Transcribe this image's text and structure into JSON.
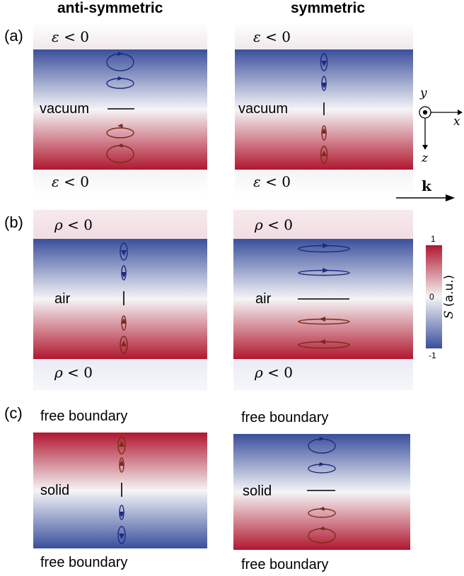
{
  "titles": {
    "left": "anti-symmetric",
    "right": "symmetric"
  },
  "panels": {
    "a": {
      "tag": "(a)",
      "top": "< 0",
      "bottom": "< 0",
      "sym": "ε",
      "middle_left": "vacuum",
      "middle_right": "vacuum"
    },
    "b": {
      "tag": "(b)",
      "top": "< 0",
      "bottom": "< 0",
      "sym": "ρ",
      "middle_left": "air",
      "middle_right": "air"
    },
    "c": {
      "tag": "(c)",
      "top": "free boundary",
      "bottom": "free boundary",
      "middle_left": "solid",
      "middle_right": "solid"
    }
  },
  "axes": {
    "x": "x",
    "y": "y",
    "z": "z",
    "k": "k"
  },
  "colorbar": {
    "max": "1",
    "mid": "0",
    "min": "-1",
    "title": "S (a.u.)",
    "title_symbol": "S",
    "title_unit": "(a.u.)"
  },
  "colors": {
    "red": "#b0172f",
    "blue": "#3a4f9c",
    "white": "#f5f5f7",
    "loop_red": "#7a2a1a",
    "loop_blue": "#1d2a7e"
  }
}
